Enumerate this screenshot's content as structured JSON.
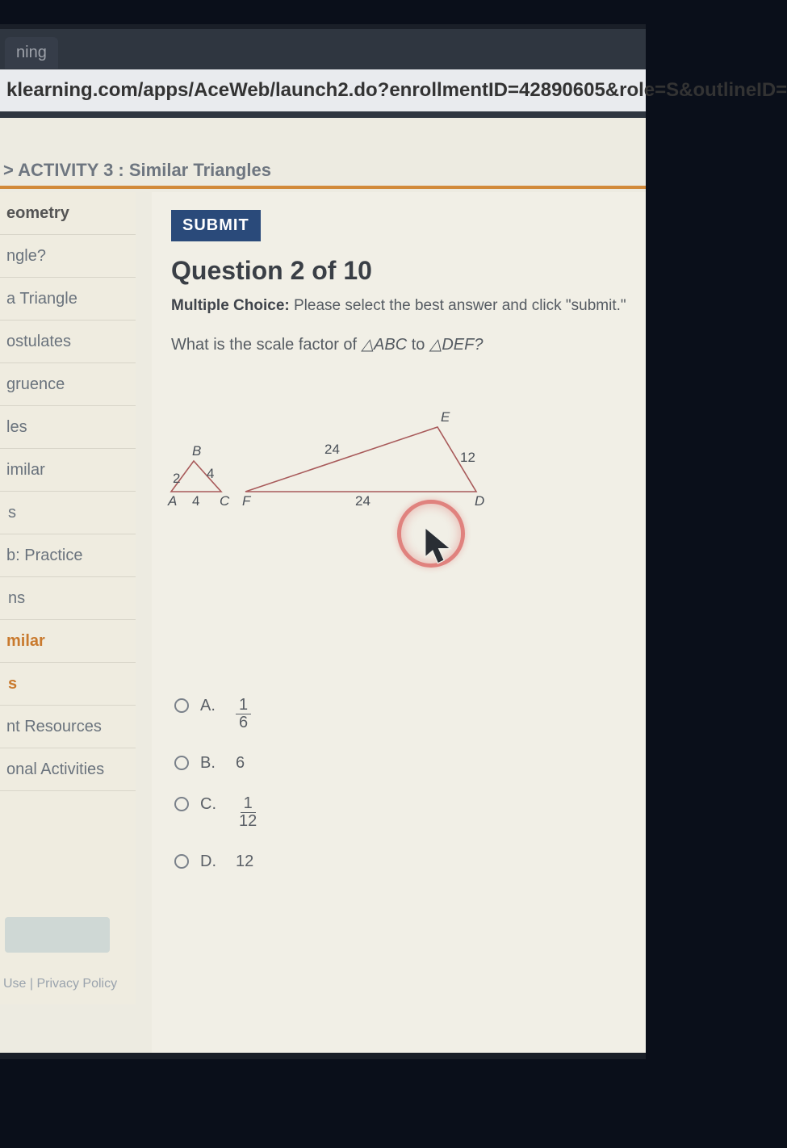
{
  "browser": {
    "tab_title": "ning",
    "url": "klearning.com/apps/AceWeb/launch2.do?enrollmentID=42890605&role=S&outlineID="
  },
  "activity_bar": "> ACTIVITY 3 : Similar Triangles",
  "sidebar": {
    "items": [
      {
        "label": "eometry",
        "class": "head"
      },
      {
        "label": "ngle?",
        "class": ""
      },
      {
        "label": "a Triangle",
        "class": ""
      },
      {
        "label": "ostulates",
        "class": ""
      },
      {
        "label": "gruence",
        "class": ""
      },
      {
        "label": "les",
        "class": ""
      },
      {
        "label": "imilar",
        "class": ""
      },
      {
        "label": "s",
        "class": "sub"
      },
      {
        "label": "b: Practice",
        "class": ""
      },
      {
        "label": "ns",
        "class": "sub"
      },
      {
        "label": "milar",
        "class": "accent"
      },
      {
        "label": "s",
        "class": "accent sub"
      },
      {
        "label": "nt Resources",
        "class": ""
      },
      {
        "label": "onal Activities",
        "class": ""
      }
    ],
    "footer": "Use  |  Privacy Policy"
  },
  "main": {
    "submit_label": "SUBMIT",
    "question_number": "Question 2 of 10",
    "mc_label": "Multiple Choice:",
    "mc_text": " Please select the best answer and click \"submit.\"",
    "question_text_pre": "What is the scale factor of ",
    "tri1": "△ABC",
    "to": " to ",
    "tri2": "△DEF?",
    "figure": {
      "small": {
        "points": {
          "A": [
            0,
            110
          ],
          "B": [
            28,
            72
          ],
          "C": [
            62,
            110
          ]
        },
        "labels": {
          "A": "A",
          "B": "B",
          "C": "C"
        },
        "sides": {
          "AB": "2",
          "BC": "4",
          "AC": "4"
        },
        "color": "#a85a5a"
      },
      "big": {
        "points": {
          "F": [
            92,
            110
          ],
          "E": [
            330,
            30
          ],
          "D": [
            378,
            110
          ]
        },
        "labels": {
          "F": "F",
          "E": "E",
          "D": "D"
        },
        "sides": {
          "FE": "24",
          "ED": "12",
          "FD": "24"
        },
        "color": "#a85a5a"
      }
    },
    "options": [
      {
        "letter": "A.",
        "type": "frac",
        "num": "1",
        "den": "6"
      },
      {
        "letter": "B.",
        "type": "text",
        "value": "6"
      },
      {
        "letter": "C.",
        "type": "frac",
        "num": "1",
        "den": "12"
      },
      {
        "letter": "D.",
        "type": "text",
        "value": "12"
      }
    ]
  },
  "colors": {
    "accent_orange": "#d28a3a",
    "submit_bg": "#2a4a7a",
    "frame_bg": "#edebe1",
    "text": "#555b62"
  }
}
